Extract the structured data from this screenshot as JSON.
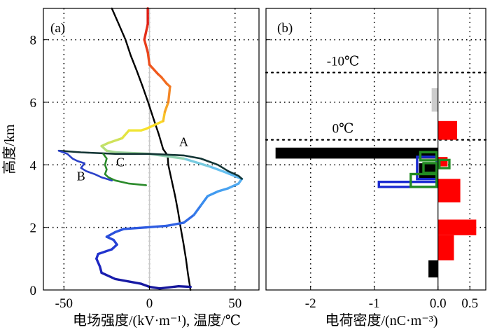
{
  "chart_data": [
    {
      "id": "a",
      "type": "line",
      "panel_label": "(a)",
      "xlabel": "电场强度/(kV·m⁻¹), 温度/℃",
      "ylabel": "高度/km",
      "xlim": [
        -62,
        64
      ],
      "ylim": [
        0,
        9
      ],
      "xticks": [
        -50,
        0,
        50
      ],
      "yticks": [
        0,
        2,
        4,
        6,
        8
      ],
      "grid": true,
      "zero_line": 0,
      "series": [
        {
          "name": "温度",
          "color": "#000000",
          "points": [
            [
              24,
              0
            ],
            [
              22.5,
              0.5
            ],
            [
              21.3,
              1
            ],
            [
              19.8,
              1.5
            ],
            [
              18.2,
              2
            ],
            [
              16.7,
              2.5
            ],
            [
              15,
              3
            ],
            [
              13,
              3.5
            ],
            [
              11,
              4
            ],
            [
              10.6,
              4.3
            ],
            [
              8,
              4.5
            ],
            [
              5.3,
              5
            ],
            [
              2.2,
              5.5
            ],
            [
              -0.8,
              6
            ],
            [
              -4,
              6.5
            ],
            [
              -7.4,
              7
            ],
            [
              -11,
              7.5
            ],
            [
              -14,
              8
            ],
            [
              -18,
              8.5
            ],
            [
              -22,
              9
            ]
          ]
        },
        {
          "name": "电场强度",
          "gradient": "height",
          "points": [
            [
              24,
              0.1
            ],
            [
              17,
              0.12
            ],
            [
              6,
              0.05
            ],
            [
              0,
              0.1
            ],
            [
              -5,
              0.2
            ],
            [
              -20,
              0.35
            ],
            [
              -28,
              0.55
            ],
            [
              -29,
              0.75
            ],
            [
              -31,
              1.0
            ],
            [
              -30,
              1.15
            ],
            [
              -22,
              1.3
            ],
            [
              -19,
              1.45
            ],
            [
              -21,
              1.6
            ],
            [
              -25,
              1.7
            ],
            [
              -20,
              1.85
            ],
            [
              -15,
              1.95
            ],
            [
              -2,
              2.0
            ],
            [
              10,
              2.05
            ],
            [
              20,
              2.15
            ],
            [
              26,
              2.4
            ],
            [
              30,
              2.7
            ],
            [
              34,
              3.0
            ],
            [
              40,
              3.15
            ],
            [
              46,
              3.25
            ],
            [
              52,
              3.4
            ],
            [
              54,
              3.55
            ],
            [
              45,
              3.75
            ],
            [
              35,
              3.95
            ],
            [
              20,
              4.2
            ],
            [
              0,
              4.35
            ],
            [
              -20,
              4.4
            ],
            [
              -25,
              4.45
            ],
            [
              -28,
              4.6
            ],
            [
              -24,
              4.7
            ],
            [
              -16,
              4.85
            ],
            [
              -12,
              5.1
            ],
            [
              -5,
              5.1
            ],
            [
              -2,
              5.15
            ],
            [
              8,
              5.4
            ],
            [
              9,
              5.7
            ],
            [
              11,
              6.0
            ],
            [
              12,
              6.5
            ],
            [
              10,
              6.6
            ],
            [
              7,
              6.8
            ],
            [
              5,
              6.9
            ],
            [
              0,
              7.2
            ],
            [
              -1,
              7.6
            ],
            [
              -3,
              8.0
            ],
            [
              -1,
              8.5
            ],
            [
              -1,
              9.0
            ]
          ]
        },
        {
          "name": "A",
          "color": "#123434",
          "points": [
            [
              -53,
              4.45
            ],
            [
              -40,
              4.4
            ],
            [
              -20,
              4.35
            ],
            [
              0,
              4.35
            ],
            [
              20,
              4.3
            ],
            [
              30,
              4.2
            ],
            [
              35,
              4.1
            ],
            [
              40,
              4.0
            ],
            [
              46,
              3.8
            ],
            [
              52,
              3.65
            ],
            [
              54,
              3.55
            ]
          ]
        },
        {
          "name": "B",
          "color": "#2a40c8",
          "points": [
            [
              -53,
              4.45
            ],
            [
              -48,
              4.35
            ],
            [
              -45,
              4.2
            ],
            [
              -42,
              4.12
            ],
            [
              -38,
              4.05
            ],
            [
              -40,
              3.9
            ],
            [
              -37,
              3.8
            ],
            [
              -32,
              3.7
            ],
            [
              -28,
              3.6
            ],
            [
              -25,
              3.55
            ],
            [
              -22,
              3.5
            ]
          ]
        },
        {
          "name": "C",
          "color": "#2a8a2a",
          "points": [
            [
              -27,
              4.35
            ],
            [
              -25,
              4.2
            ],
            [
              -26,
              4.0
            ],
            [
              -25,
              3.85
            ],
            [
              -26,
              3.7
            ],
            [
              -24,
              3.6
            ],
            [
              -20,
              3.5
            ],
            [
              -12,
              3.4
            ],
            [
              -2,
              3.35
            ]
          ]
        }
      ],
      "annotations": [
        {
          "text": "A",
          "x": 20,
          "y": 4.6
        },
        {
          "text": "B",
          "x": -40,
          "y": 3.5
        },
        {
          "text": "C",
          "x": -17,
          "y": 3.95
        }
      ]
    },
    {
      "id": "b",
      "type": "bar",
      "orientation": "horizontal",
      "panel_label": "(b)",
      "xlabel": "电荷密度/(nC·m⁻³)",
      "xlim": [
        -2.7,
        0.75
      ],
      "ylim": [
        0,
        9
      ],
      "xticks": [
        -2,
        -1,
        0.0,
        0.5
      ],
      "xtick_labels": [
        "-2",
        "-1",
        "0.0",
        "0.5"
      ],
      "yticks": [
        0,
        2,
        4,
        6,
        8
      ],
      "grid": true,
      "zero_line": 0,
      "isotherms": [
        {
          "label": "-10℃",
          "y": 6.95
        },
        {
          "label": "0℃",
          "y": 4.8
        }
      ],
      "bars": [
        {
          "value": -0.15,
          "y0": 0.4,
          "y1": 0.95,
          "color": "#000000",
          "filled": true
        },
        {
          "value": 0.25,
          "y0": 0.95,
          "y1": 1.75,
          "color": "#ff0000",
          "filled": true
        },
        {
          "value": 0.6,
          "y0": 1.75,
          "y1": 2.25,
          "color": "#ff0000",
          "filled": true
        },
        {
          "value": 0.35,
          "y0": 2.8,
          "y1": 3.55,
          "color": "#ff0000",
          "filled": true
        },
        {
          "value": -0.3,
          "y0": 3.55,
          "y1": 4.05,
          "color": "#000000",
          "filled": true
        },
        {
          "value": 0.15,
          "y0": 3.95,
          "y1": 4.25,
          "color": "#ff0000",
          "filled": true
        },
        {
          "value": -2.55,
          "y0": 4.2,
          "y1": 4.55,
          "color": "#000000",
          "filled": true
        },
        {
          "value": 0.3,
          "y0": 4.8,
          "y1": 5.4,
          "color": "#ff0000",
          "filled": true
        },
        {
          "value": -0.1,
          "y0": 5.7,
          "y1": 6.45,
          "color": "#cccccc",
          "filled": true
        },
        {
          "value": -0.95,
          "y0": 3.25,
          "y1": 3.5,
          "color": "#1a2ad0",
          "filled": false
        },
        {
          "value": -0.35,
          "y0": 3.5,
          "y1": 4.3,
          "color": "#1a2ad0",
          "filled": false
        },
        {
          "value": -0.45,
          "y0": 3.25,
          "y1": 3.75,
          "color": "#228b22",
          "filled": false
        },
        {
          "value": -0.25,
          "y0": 3.7,
          "y1": 4.1,
          "color": "#228b22",
          "filled": false
        },
        {
          "value": 0.2,
          "y0": 3.85,
          "y1": 4.2,
          "color": "#228b22",
          "filled": false
        },
        {
          "value": -0.3,
          "y0": 4.1,
          "y1": 4.45,
          "color": "#228b22",
          "filled": false
        }
      ]
    }
  ]
}
